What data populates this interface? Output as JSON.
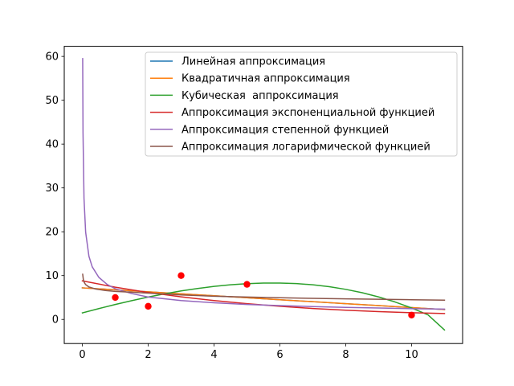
{
  "chart_data": {
    "type": "line",
    "title": "",
    "xlabel": "",
    "ylabel": "",
    "xlim": [
      -0.55,
      11.55
    ],
    "ylim": [
      -5.5,
      62.3
    ],
    "xticks": [
      0,
      2,
      4,
      6,
      8,
      10
    ],
    "yticks": [
      0,
      10,
      20,
      30,
      40,
      50,
      60
    ],
    "grid": false,
    "legend_position": "top-right",
    "scatter": {
      "name": "",
      "color": "#ff0000",
      "x": [
        1,
        2,
        3,
        5,
        10
      ],
      "y": [
        5,
        3,
        10,
        8,
        1
      ]
    },
    "series": [
      {
        "name": "Линейная аппроксимация",
        "color": "#1f77b4",
        "x": [
          0,
          1,
          2,
          3,
          4,
          5,
          6,
          7,
          8,
          9,
          10,
          11
        ],
        "y": [
          7.2,
          6.75,
          6.3,
          5.85,
          5.4,
          4.95,
          4.5,
          4.05,
          3.6,
          3.15,
          2.7,
          2.25
        ]
      },
      {
        "name": "Квадратичная аппроксимация",
        "color": "#ff7f0e",
        "x": [
          0,
          1,
          2,
          3,
          4,
          5,
          6,
          7,
          8,
          9,
          10,
          11
        ],
        "y": [
          7.2,
          6.75,
          6.3,
          5.85,
          5.4,
          4.95,
          4.5,
          4.05,
          3.6,
          3.15,
          2.7,
          2.25
        ]
      },
      {
        "name": "Кубическая  аппроксимация",
        "color": "#2ca02c",
        "x": [
          0,
          0.5,
          1,
          1.5,
          2,
          2.5,
          3,
          3.5,
          4,
          4.5,
          5,
          5.5,
          6,
          6.5,
          7,
          7.5,
          8,
          8.5,
          9,
          9.5,
          10,
          10.5,
          11
        ],
        "y": [
          1.5,
          2.47,
          3.41,
          4.28,
          5.1,
          5.84,
          6.5,
          7.06,
          7.54,
          7.91,
          8.16,
          8.3,
          8.3,
          8.18,
          7.9,
          7.47,
          6.86,
          6.09,
          5.13,
          3.98,
          2.62,
          1.04,
          -2.4
        ]
      },
      {
        "name": "Аппроксимация экспоненциальной функцией",
        "color": "#d62728",
        "x": [
          0,
          1,
          2,
          3,
          4,
          5,
          6,
          7,
          8,
          9,
          10,
          11
        ],
        "y": [
          8.8,
          7.35,
          6.15,
          5.15,
          4.3,
          3.6,
          3.0,
          2.5,
          2.1,
          1.78,
          1.52,
          1.35
        ]
      },
      {
        "name": "Аппроксимация степенной функцией",
        "color": "#9467bd",
        "x": [
          0.01,
          0.02,
          0.05,
          0.1,
          0.2,
          0.3,
          0.5,
          0.75,
          1,
          1.5,
          2,
          3,
          4,
          5,
          6,
          7,
          8,
          9,
          10,
          11
        ],
        "y": [
          59.5,
          42.5,
          27.6,
          19.9,
          14.4,
          12.0,
          9.6,
          8.0,
          7.0,
          5.9,
          5.1,
          4.3,
          3.8,
          3.4,
          3.15,
          2.93,
          2.75,
          2.6,
          2.45,
          2.35
        ]
      },
      {
        "name": "Аппроксимация логарифмической функцией",
        "color": "#8c564b",
        "x": [
          0.01,
          0.03,
          0.06,
          0.1,
          0.2,
          0.4,
          0.7,
          1,
          1.5,
          2,
          3,
          4,
          5,
          6,
          7,
          8,
          9,
          10,
          11
        ],
        "y": [
          10.3,
          9.1,
          8.4,
          7.95,
          7.4,
          6.95,
          6.6,
          6.4,
          6.2,
          6.0,
          5.6,
          5.3,
          5.1,
          4.95,
          4.8,
          4.7,
          4.6,
          4.5,
          4.4
        ]
      }
    ]
  }
}
